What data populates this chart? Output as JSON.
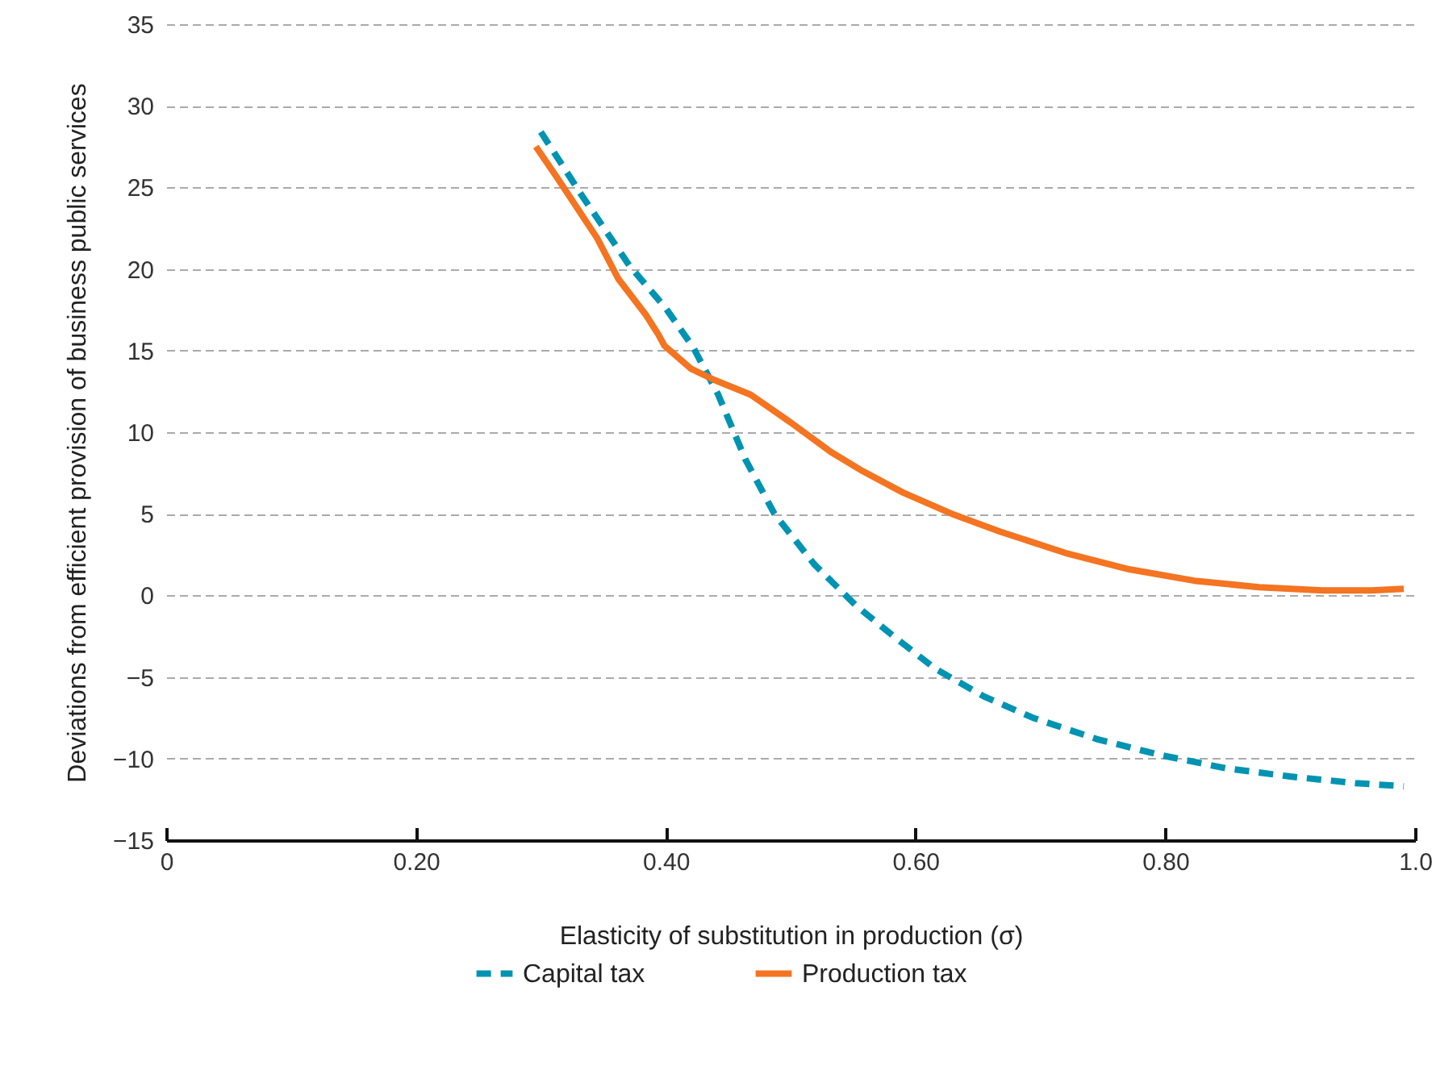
{
  "chart_data": {
    "type": "line",
    "xlabel": "Elasticity of substitution in production (σ)",
    "ylabel": "Deviations from efficient provision of business public services",
    "xlim": [
      0,
      1.0
    ],
    "xticks": [
      0,
      {
        "value": 0.2,
        "label": "0.20"
      },
      {
        "value": 0.4,
        "label": "0.40"
      },
      {
        "value": 0.6,
        "label": "0.60"
      },
      {
        "value": 0.8,
        "label": "0.80"
      },
      {
        "value": 1.0,
        "label": "1.0"
      }
    ],
    "ylim": [
      -15,
      35
    ],
    "yticks": [
      {
        "value": -15,
        "label": "−15"
      },
      {
        "value": -10,
        "label": "−10"
      },
      {
        "value": -5,
        "label": "−5"
      },
      0,
      5,
      10,
      15,
      20,
      25,
      30,
      35
    ],
    "grid": "y",
    "legend": "bottom",
    "marker": "none",
    "series": [
      {
        "name": "Capital tax",
        "color": "#0093b2",
        "line_style": "dashed",
        "x": [
          0.3,
          0.332,
          0.371,
          0.4,
          0.422,
          0.442,
          0.464,
          0.487,
          0.519,
          0.552,
          0.584,
          0.616,
          0.655,
          0.694,
          0.745,
          0.797,
          0.849,
          0.9,
          0.952,
          0.991
        ],
        "values": [
          28.4,
          24.6,
          20.2,
          17.6,
          15.2,
          12.3,
          8.3,
          5.0,
          1.9,
          -0.6,
          -2.6,
          -4.5,
          -6.2,
          -7.5,
          -8.8,
          -9.8,
          -10.6,
          -11.1,
          -11.5,
          -11.7
        ]
      },
      {
        "name": "Production tax",
        "color": "#f47421",
        "line_style": "solid",
        "x": [
          0.296,
          0.313,
          0.345,
          0.362,
          0.384,
          0.394,
          0.399,
          0.42,
          0.439,
          0.468,
          0.5,
          0.532,
          0.558,
          0.59,
          0.629,
          0.668,
          0.72,
          0.771,
          0.823,
          0.875,
          0.926,
          0.965,
          0.991
        ],
        "values": [
          27.5,
          25.6,
          21.9,
          19.4,
          17.2,
          16.0,
          15.3,
          13.9,
          13.2,
          12.3,
          10.6,
          8.8,
          7.6,
          6.3,
          5.0,
          3.9,
          2.6,
          1.6,
          0.9,
          0.5,
          0.3,
          0.3,
          0.4
        ]
      }
    ]
  }
}
